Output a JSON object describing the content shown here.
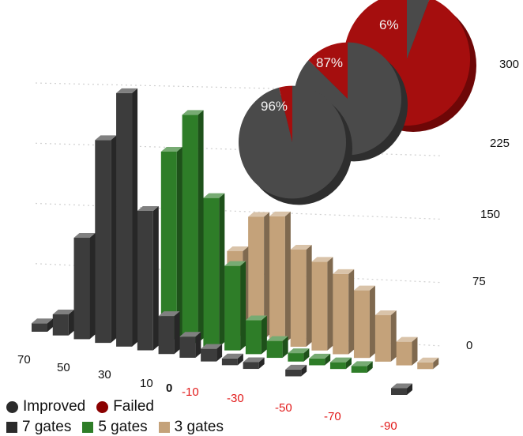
{
  "chart_data": [
    {
      "type": "bar",
      "title": "",
      "x_ticks": [
        "70",
        "50",
        "30",
        "10",
        "0",
        "-10",
        "-30",
        "-50",
        "-70",
        "-90"
      ],
      "z_ticks": [
        "0",
        "75",
        "150",
        "225",
        "300"
      ],
      "zlim": [
        0,
        300
      ],
      "grid": true,
      "series": [
        {
          "name": "7 gates",
          "color": "#3c3c3c",
          "x": [
            80,
            70,
            60,
            50,
            40,
            30,
            20,
            10,
            0,
            -10,
            -20,
            -40,
            -90
          ],
          "values": [
            10,
            25,
            120,
            240,
            300,
            165,
            45,
            25,
            15,
            8,
            8,
            8,
            8
          ]
        },
        {
          "name": "5 gates",
          "color": "#2e7d28",
          "x": [
            30,
            20,
            10,
            0,
            -10,
            -20,
            -30,
            -40,
            -50,
            -60
          ],
          "values": [
            222,
            270,
            176,
            100,
            40,
            20,
            10,
            8,
            8,
            8
          ]
        },
        {
          "name": "3 gates",
          "color": "#c4a27a",
          "x": [
            10,
            0,
            -10,
            -20,
            -30,
            -40,
            -50,
            -60,
            -70,
            -80
          ],
          "values": [
            100,
            145,
            150,
            115,
            105,
            95,
            80,
            55,
            28,
            8
          ]
        }
      ]
    },
    {
      "type": "pie",
      "categories": [
        "Improved",
        "Failed"
      ],
      "colors": [
        "#4a4a4a",
        "#a50e0e"
      ],
      "pies": [
        {
          "slices": [
            96,
            4
          ],
          "label": "96%"
        },
        {
          "slices": [
            87,
            13
          ],
          "label": "87%"
        },
        {
          "slices": [
            6,
            94
          ],
          "label": "6%"
        }
      ]
    }
  ],
  "legend": {
    "outcome": [
      {
        "label": "Improved",
        "color": "#2b2b2b"
      },
      {
        "label": "Failed",
        "color": "#8b0000"
      }
    ],
    "gates": [
      {
        "label": "7 gates",
        "color": "#2b2b2b"
      },
      {
        "label": "5 gates",
        "color": "#2e7d28"
      },
      {
        "label": "3 gates",
        "color": "#c4a27a"
      }
    ]
  }
}
